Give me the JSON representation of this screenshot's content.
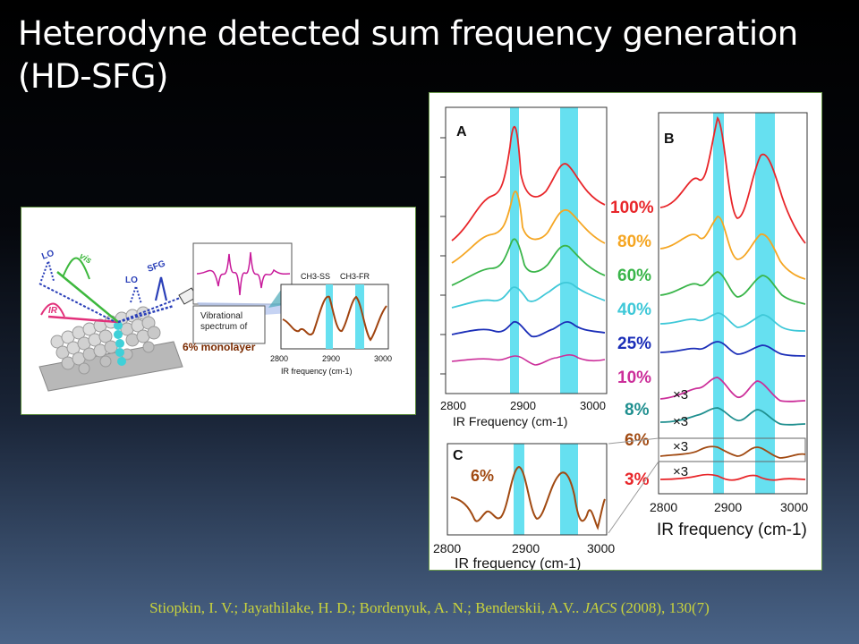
{
  "slide": {
    "title_line1": "Heterodyne detected sum frequency generation",
    "title_line2": "(HD-SFG)",
    "citation_authors": "Stiopkin, I. V.; Jayathilake, H. D.; Bordenyuk, A. N.; Benderskii, A.V..",
    "citation_journal": "JACS",
    "citation_rest": "(2008), 130(7)"
  },
  "left_figure": {
    "labels": {
      "lo1": "LO",
      "vis": "vis",
      "lo2": "LO",
      "sfg": "SFG",
      "ir": "IR",
      "ch3_ss": "CH3-SS",
      "ch3_fr": "CH3-FR",
      "vib_line1": "Vibrational",
      "vib_line2": "spectrum of",
      "vib_line3": "6% monolayer"
    },
    "axis": {
      "ticks": [
        "2800",
        "2900",
        "3000"
      ],
      "xlabel": "IR frequency (cm-1)"
    }
  },
  "right_figure": {
    "panel_labels": {
      "a": "A",
      "b": "B",
      "c": "C"
    },
    "percent_labels": [
      {
        "text": "100%",
        "color": "#e8262a"
      },
      {
        "text": "80%",
        "color": "#f5a623"
      },
      {
        "text": "60%",
        "color": "#3ab54a"
      },
      {
        "text": "40%",
        "color": "#3fc8d8"
      },
      {
        "text": "25%",
        "color": "#1c2fb8"
      },
      {
        "text": "10%",
        "color": "#cc2f9a"
      },
      {
        "text": "8%",
        "color": "#1f8f8f"
      },
      {
        "text": "6%",
        "color": "#a14a12"
      },
      {
        "text": "3%",
        "color": "#e8262a"
      }
    ],
    "multipliers": [
      "×3",
      "×3",
      "×3",
      "×3"
    ],
    "panel_c_label": "6%",
    "axis_a": {
      "ticks": [
        "2800",
        "2900",
        "3000"
      ],
      "xlabel": "IR Frequency (cm-1)"
    },
    "axis_b": {
      "ticks": [
        "2800",
        "2900",
        "3000"
      ],
      "xlabel": "IR frequency (cm-1)"
    },
    "axis_c": {
      "ticks": [
        "2800",
        "2900",
        "3000"
      ],
      "xlabel": "IR frequency (cm-1)"
    }
  }
}
